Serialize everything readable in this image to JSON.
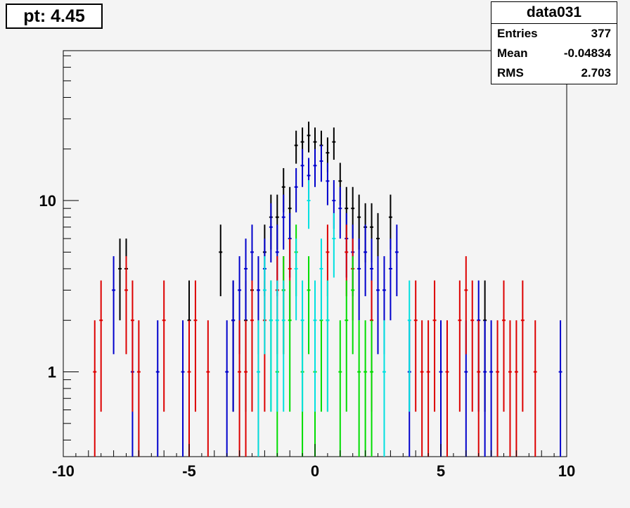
{
  "title": "pt: 4.45",
  "stats": {
    "name": "data031",
    "rows": [
      {
        "label": "Entries",
        "value": "377"
      },
      {
        "label": "Mean",
        "value": "-0.04834"
      },
      {
        "label": "RMS",
        "value": "2.703"
      }
    ]
  },
  "chart_data": {
    "type": "scatter",
    "xlim": [
      -10,
      10
    ],
    "ylim": [
      0.32,
      75
    ],
    "ylog": true,
    "x_ticks": [
      -10,
      -5,
      0,
      5,
      10
    ],
    "y_ticks": [
      1,
      10
    ],
    "grid": false,
    "series": [
      {
        "color": "#000000",
        "points": [
          [
            -7.75,
            4
          ],
          [
            -7.5,
            4
          ],
          [
            -5,
            2
          ],
          [
            -3.75,
            5
          ],
          [
            -3.25,
            2
          ],
          [
            -2.75,
            2
          ],
          [
            -2.5,
            3
          ],
          [
            -2,
            5
          ],
          [
            -1.75,
            8
          ],
          [
            -1.5,
            8
          ],
          [
            -1.25,
            12
          ],
          [
            -1,
            9
          ],
          [
            -0.75,
            21
          ],
          [
            -0.5,
            22
          ],
          [
            -0.25,
            24
          ],
          [
            0,
            22
          ],
          [
            0.25,
            21
          ],
          [
            0.5,
            19
          ],
          [
            0.75,
            22
          ],
          [
            1,
            13
          ],
          [
            1.25,
            9
          ],
          [
            1.5,
            9
          ],
          [
            1.75,
            8
          ],
          [
            2,
            7
          ],
          [
            2.25,
            7
          ],
          [
            2.5,
            6
          ],
          [
            3,
            8
          ],
          [
            6.75,
            2
          ]
        ]
      },
      {
        "color": "#0000cc",
        "points": [
          [
            -8,
            3
          ],
          [
            -7.25,
            1
          ],
          [
            -6.25,
            1
          ],
          [
            -5.25,
            1
          ],
          [
            -3.5,
            1
          ],
          [
            -3.25,
            2
          ],
          [
            -3,
            3
          ],
          [
            -2.75,
            4
          ],
          [
            -2.5,
            5
          ],
          [
            -2.25,
            3
          ],
          [
            -2,
            4
          ],
          [
            -1.75,
            7
          ],
          [
            -1.5,
            5
          ],
          [
            -1.25,
            8
          ],
          [
            -1,
            6
          ],
          [
            -0.75,
            12
          ],
          [
            -0.5,
            16
          ],
          [
            -0.25,
            14
          ],
          [
            0,
            16
          ],
          [
            0.25,
            17
          ],
          [
            0.5,
            13
          ],
          [
            0.75,
            10
          ],
          [
            1,
            9
          ],
          [
            1.25,
            6
          ],
          [
            1.5,
            5
          ],
          [
            1.75,
            4
          ],
          [
            2,
            5
          ],
          [
            2.25,
            4
          ],
          [
            2.5,
            3
          ],
          [
            2.75,
            3
          ],
          [
            3,
            4
          ],
          [
            3.25,
            5
          ],
          [
            3.75,
            1
          ],
          [
            5,
            1
          ],
          [
            6,
            1
          ],
          [
            6.5,
            2
          ],
          [
            6.75,
            1
          ],
          [
            7,
            1
          ],
          [
            9.75,
            1
          ]
        ]
      },
      {
        "color": "#dd0000",
        "points": [
          [
            -8.75,
            1
          ],
          [
            -8.5,
            2
          ],
          [
            -7.5,
            3
          ],
          [
            -7.25,
            2
          ],
          [
            -7,
            1
          ],
          [
            -6,
            2
          ],
          [
            -5,
            1
          ],
          [
            -4.75,
            2
          ],
          [
            -4.25,
            1
          ],
          [
            -3,
            1
          ],
          [
            -2.75,
            1
          ],
          [
            -2.5,
            2
          ],
          [
            -2.25,
            1
          ],
          [
            -2,
            2
          ],
          [
            -1.5,
            3
          ],
          [
            -1.25,
            3
          ],
          [
            -1,
            4
          ],
          [
            0.5,
            5
          ],
          [
            1.25,
            5
          ],
          [
            1.5,
            4
          ],
          [
            2.25,
            2
          ],
          [
            4,
            2
          ],
          [
            4.25,
            1
          ],
          [
            4.5,
            1
          ],
          [
            4.75,
            2
          ],
          [
            5.25,
            1
          ],
          [
            5.75,
            2
          ],
          [
            6,
            3
          ],
          [
            6.25,
            2
          ],
          [
            6.5,
            1
          ],
          [
            7.25,
            1
          ],
          [
            7.5,
            2
          ],
          [
            7.75,
            1
          ],
          [
            8,
            1
          ],
          [
            8.25,
            2
          ],
          [
            8.75,
            1
          ]
        ]
      },
      {
        "color": "#00dd00",
        "points": [
          [
            -1.75,
            2
          ],
          [
            -1.5,
            1
          ],
          [
            -1.25,
            3
          ],
          [
            -1,
            2
          ],
          [
            -0.75,
            5
          ],
          [
            -0.5,
            1
          ],
          [
            -0.25,
            3
          ],
          [
            0,
            1
          ],
          [
            0.25,
            2
          ],
          [
            0.5,
            2
          ],
          [
            1,
            1
          ],
          [
            1.25,
            2
          ],
          [
            1.5,
            3
          ],
          [
            1.75,
            1
          ],
          [
            2,
            1
          ],
          [
            2.25,
            1
          ]
        ]
      },
      {
        "color": "#00e0e0",
        "points": [
          [
            -2.25,
            1
          ],
          [
            -2,
            3
          ],
          [
            -1.75,
            2
          ],
          [
            -1.5,
            2
          ],
          [
            -1.25,
            2
          ],
          [
            -0.75,
            4
          ],
          [
            -0.5,
            2
          ],
          [
            -0.25,
            10
          ],
          [
            0,
            2
          ],
          [
            0.25,
            4
          ],
          [
            0.5,
            2
          ],
          [
            0.75,
            6
          ],
          [
            2.75,
            1
          ],
          [
            3.75,
            2
          ]
        ]
      }
    ]
  }
}
